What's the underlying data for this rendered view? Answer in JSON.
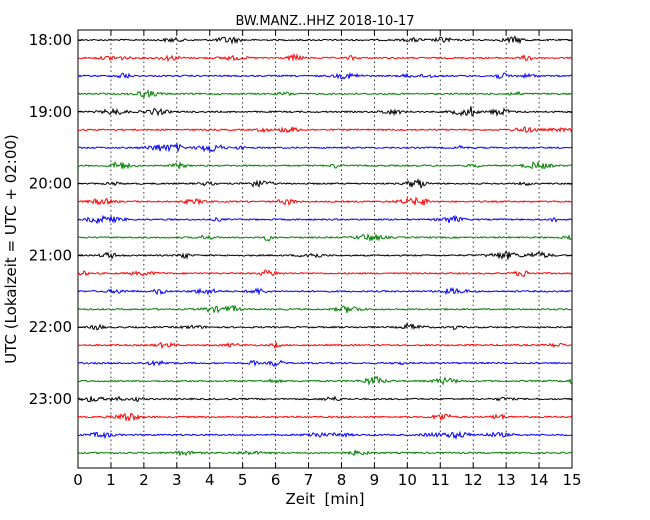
{
  "chart_data": {
    "type": "line",
    "title": "BW.MANZ..HHZ 2018-10-17",
    "xlabel": "Zeit  [min]",
    "ylabel": "UTC (Lokalzeit = UTC + 02:00)",
    "xlim": [
      0,
      15
    ],
    "x_ticks": [
      "0",
      "1",
      "2",
      "3",
      "4",
      "5",
      "6",
      "7",
      "8",
      "9",
      "10",
      "11",
      "12",
      "13",
      "14",
      "15"
    ],
    "y_ticks": [
      "18:00",
      "19:00",
      "20:00",
      "21:00",
      "22:00",
      "23:00"
    ],
    "trace_start_times": [
      "18:00",
      "18:15",
      "18:30",
      "18:45",
      "19:00",
      "19:15",
      "19:30",
      "19:45",
      "20:00",
      "20:15",
      "20:30",
      "20:45",
      "21:00",
      "21:15",
      "21:30",
      "21:45",
      "22:00",
      "22:15",
      "22:30",
      "22:45",
      "23:00",
      "23:15",
      "23:30",
      "23:45"
    ],
    "trace_colors": [
      "#000000",
      "#ff0000",
      "#0000ff",
      "#008000"
    ],
    "grid": "x-dotted",
    "legend": "none"
  }
}
